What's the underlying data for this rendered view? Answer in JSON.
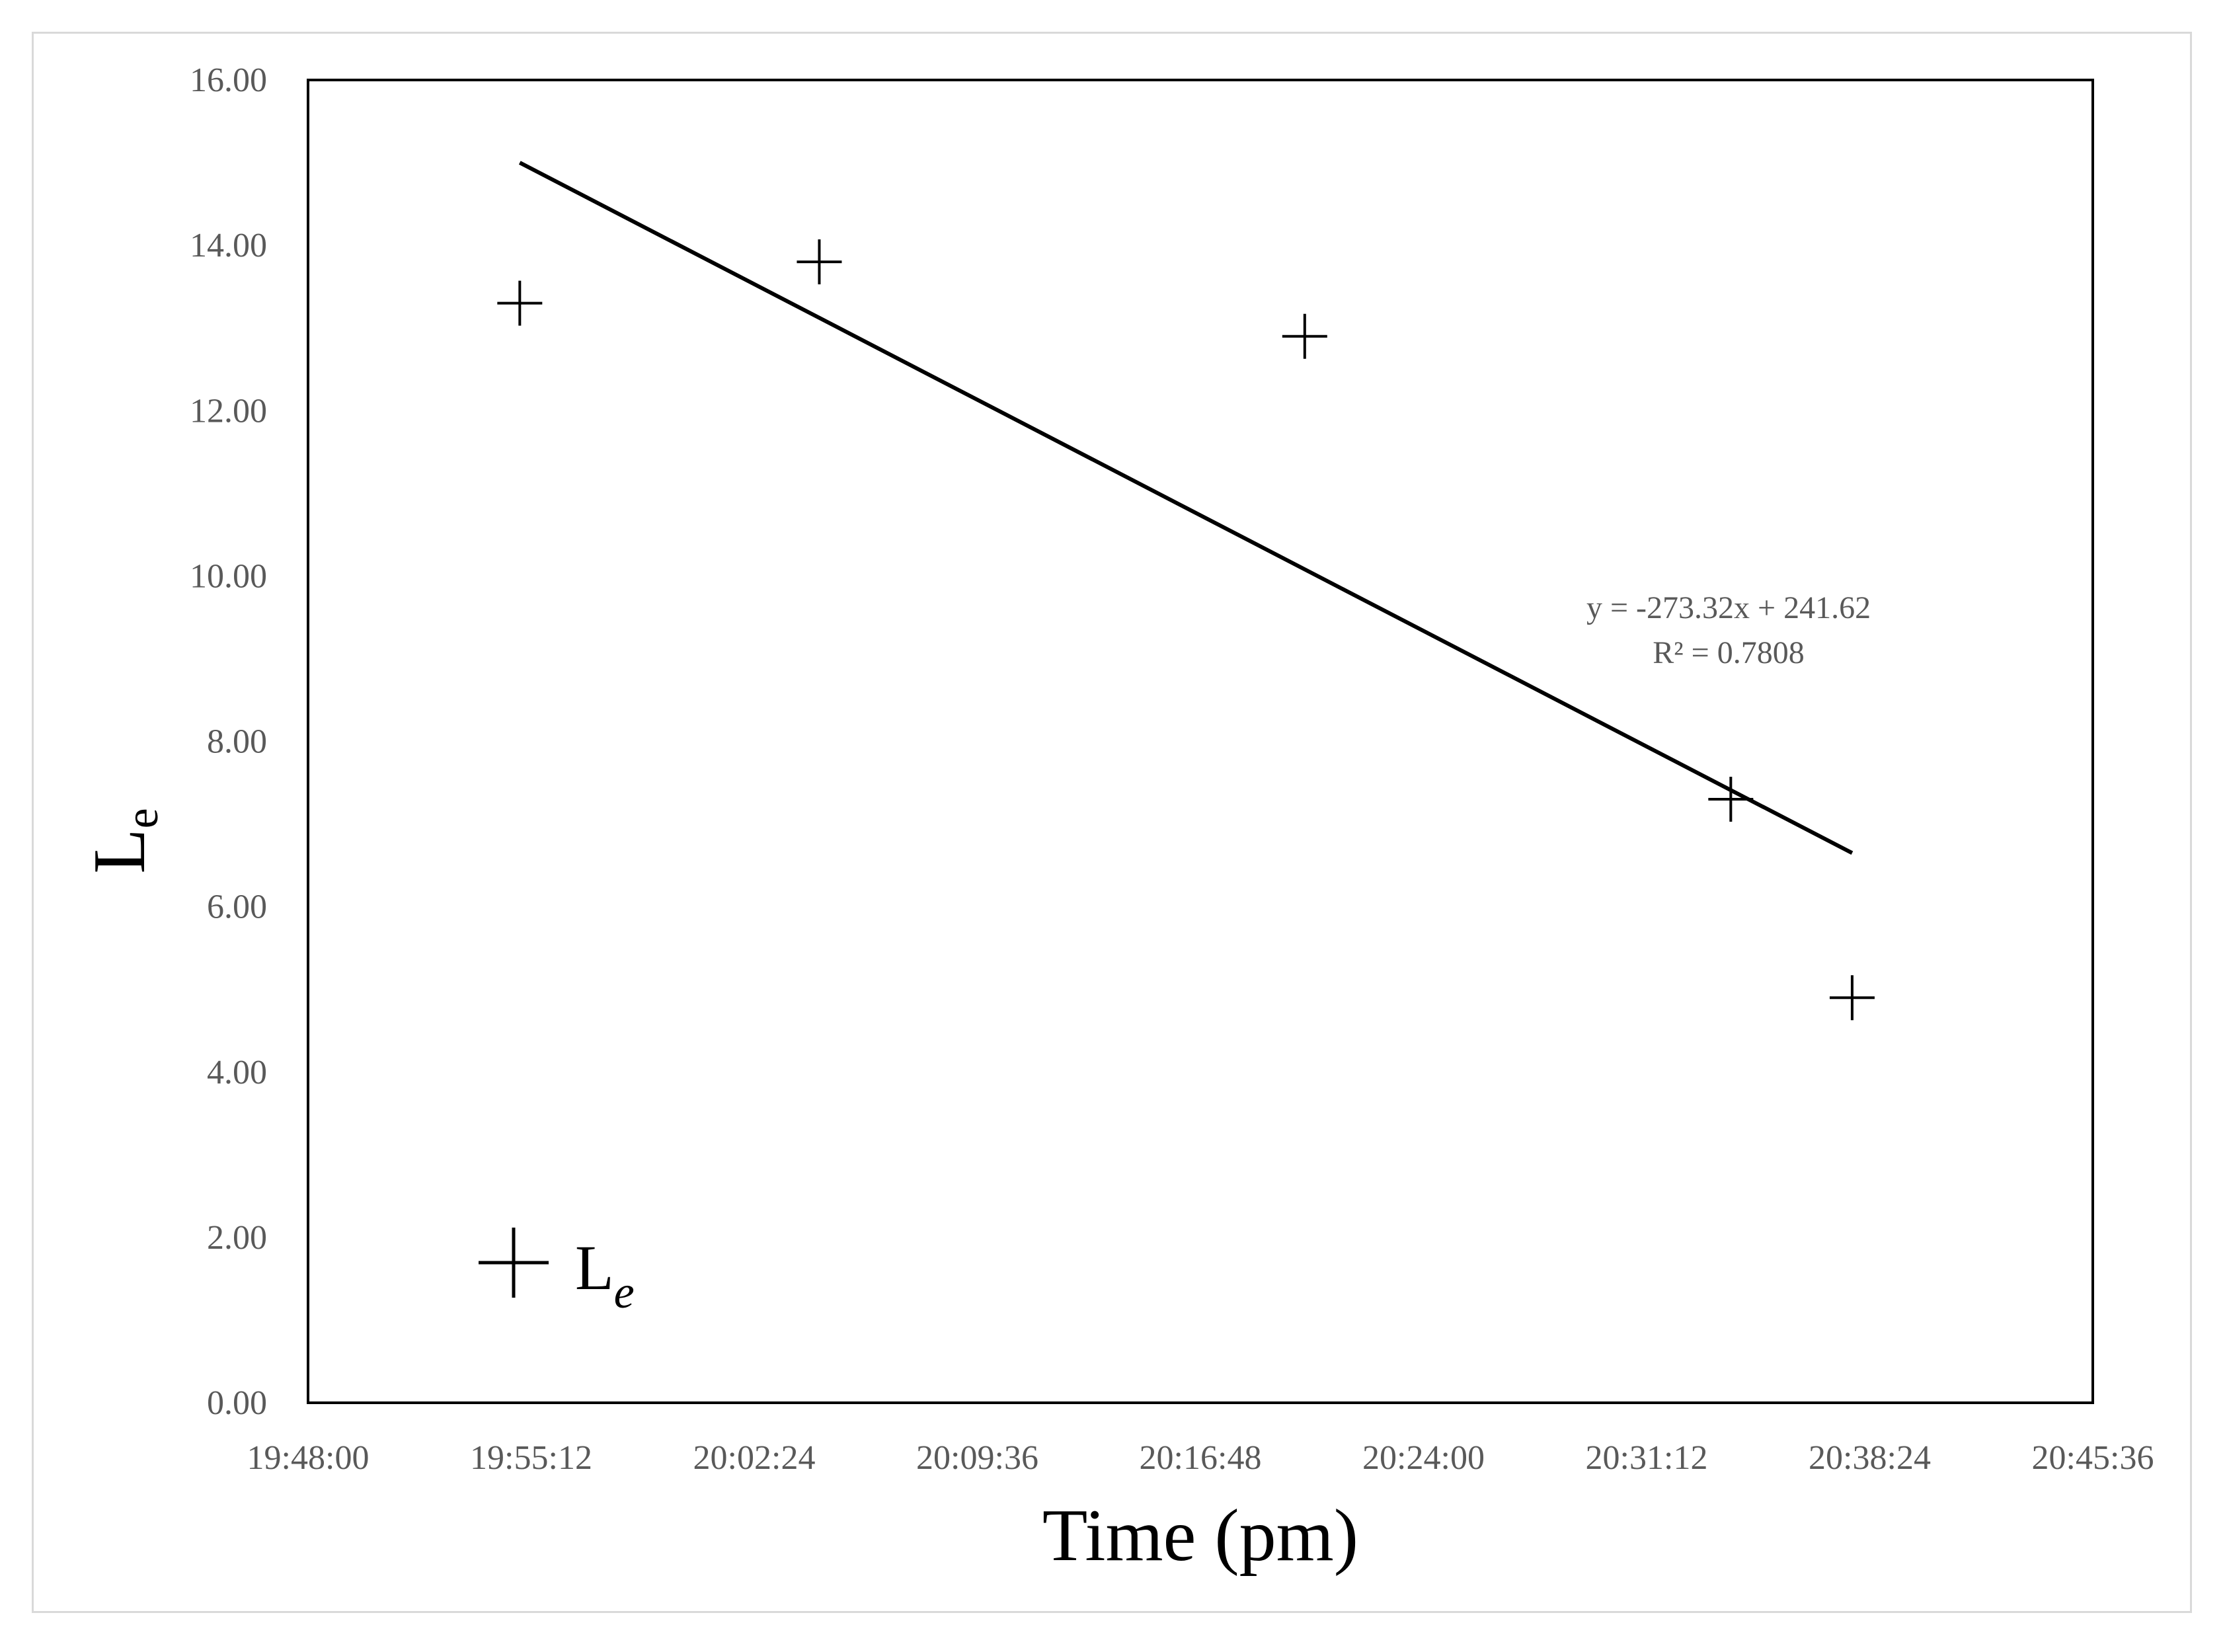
{
  "chart_data": {
    "type": "scatter",
    "xlabel": "Time (pm)",
    "ylabel": {
      "main": "L",
      "sub": "e"
    },
    "x_ticks": [
      "19:48:00",
      "19:55:12",
      "20:02:24",
      "20:09:36",
      "20:16:48",
      "20:24:00",
      "20:31:12",
      "20:38:24",
      "20:45:36"
    ],
    "y_ticks": [
      "0.00",
      "2.00",
      "4.00",
      "6.00",
      "8.00",
      "10.00",
      "12.00",
      "14.00",
      "16.00"
    ],
    "xlim": [
      "19:48:00",
      "20:45:36"
    ],
    "ylim": [
      0,
      16
    ],
    "grid": false,
    "series": [
      {
        "name": {
          "main": "L",
          "sub": "e"
        },
        "marker": "plus",
        "color": "#000000",
        "points": [
          {
            "x": "19:54:50",
            "y": 13.3
          },
          {
            "x": "20:04:30",
            "y": 13.8
          },
          {
            "x": "20:20:10",
            "y": 12.9
          },
          {
            "x": "20:33:55",
            "y": 7.3
          },
          {
            "x": "20:37:50",
            "y": 4.9
          }
        ]
      }
    ],
    "trendline": {
      "type": "linear",
      "x_start": "19:54:50",
      "x_end": "20:37:50",
      "y_start": 15.0,
      "y_end": 6.65,
      "equation": "y = -273.32x + 241.62",
      "r_squared": "R² = 0.7808"
    },
    "legend_position": "bottom-left"
  }
}
